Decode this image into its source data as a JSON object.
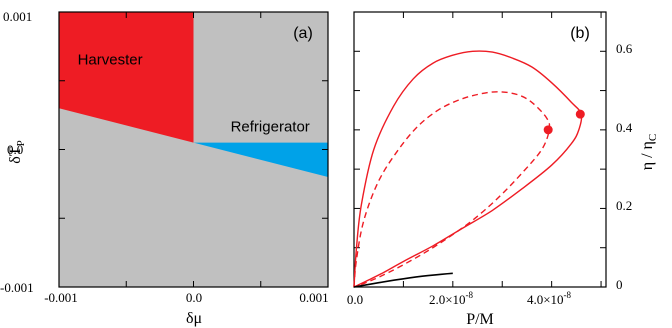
{
  "chart_data": [
    {
      "type": "heatmap",
      "panel_label": "(a)",
      "xlabel": "δμ",
      "ylabel": "δT",
      "ylabel_subscript": "P",
      "xlim": [
        -0.001,
        0.001
      ],
      "ylim": [
        -0.001,
        0.001
      ],
      "xtick_labels": [
        "-0.001",
        "0.0",
        "0.001"
      ],
      "ytick_labels": [
        "0.001",
        "0.0",
        "-0.001"
      ],
      "background_color": "#c0c0c0",
      "regions": [
        {
          "name": "Harvester",
          "color": "#ee1c24",
          "polygon": [
            [
              -0.001,
              0.0003
            ],
            [
              0.0,
              5e-05
            ],
            [
              0.0,
              0.001
            ],
            [
              -0.001,
              0.001
            ]
          ],
          "label_at": [
            -0.00062,
            0.00062
          ]
        },
        {
          "name": "Refrigerator",
          "color": "#00a2e8",
          "polygon": [
            [
              0.0,
              5e-05
            ],
            [
              0.001,
              5e-05
            ],
            [
              0.001,
              -0.0002
            ]
          ],
          "label_at": [
            0.00057,
            0.00013
          ]
        }
      ]
    },
    {
      "type": "line",
      "panel_label": "(b)",
      "xlabel": "P/M",
      "ylabel": "η / η",
      "ylabel_subscript": "C",
      "xlim": [
        0,
        5.1e-08
      ],
      "ylim": [
        0,
        0.7
      ],
      "xtick_labels": [
        "0.0",
        "2.0×10",
        "4.0×10"
      ],
      "xtick_exponent": "-8",
      "ytick_labels": [
        "0",
        "0.2",
        "0.4",
        "0.6"
      ],
      "series": [
        {
          "style": "solid",
          "color": "#ee1c24",
          "x": [
            0,
            5e-10,
            1.5e-09,
            4e-09,
            8e-09,
            1.2e-08,
            1.6e-08,
            2e-08,
            2.4e-08,
            2.8e-08,
            3.2e-08,
            3.6e-08,
            4e-08,
            4.4e-08,
            4.6e-08,
            4.55e-08,
            4.4e-08,
            4e-08,
            3.4e-08,
            2.8e-08,
            2.2e-08,
            1.6e-08,
            1e-08,
            6e-09,
            3e-09,
            1e-09,
            0
          ],
          "y": [
            0,
            0.1,
            0.21,
            0.35,
            0.46,
            0.53,
            0.57,
            0.59,
            0.6,
            0.598,
            0.583,
            0.56,
            0.52,
            0.47,
            0.44,
            0.4,
            0.365,
            0.31,
            0.25,
            0.195,
            0.15,
            0.105,
            0.065,
            0.037,
            0.018,
            0.006,
            0
          ]
        },
        {
          "style": "dashed",
          "color": "#ee1c24",
          "x": [
            0,
            5e-10,
            2e-09,
            5e-09,
            9e-09,
            1.3e-08,
            1.7e-08,
            2.1e-08,
            2.5e-08,
            2.9e-08,
            3.3e-08,
            3.6e-08,
            3.9e-08,
            3.95e-08,
            3.8e-08,
            3.4e-08,
            2.9e-08,
            2.4e-08,
            1.9e-08,
            1.4e-08,
            9e-09,
            5e-09,
            2e-09,
            5e-10,
            0
          ],
          "y": [
            0,
            0.07,
            0.17,
            0.27,
            0.35,
            0.41,
            0.45,
            0.475,
            0.49,
            0.497,
            0.49,
            0.47,
            0.43,
            0.4,
            0.35,
            0.29,
            0.225,
            0.17,
            0.125,
            0.085,
            0.05,
            0.025,
            0.009,
            0.002,
            0
          ]
        },
        {
          "style": "solid",
          "color": "#000000",
          "x": [
            0,
            5e-09,
            1e-08,
            1.5e-08,
            2e-08
          ],
          "y": [
            0,
            0.011,
            0.021,
            0.029,
            0.035
          ]
        }
      ],
      "markers": [
        {
          "x": 4.58e-08,
          "y": 0.44,
          "color": "#ee1c24"
        },
        {
          "x": 3.93e-08,
          "y": 0.4,
          "color": "#ee1c24"
        }
      ]
    }
  ]
}
